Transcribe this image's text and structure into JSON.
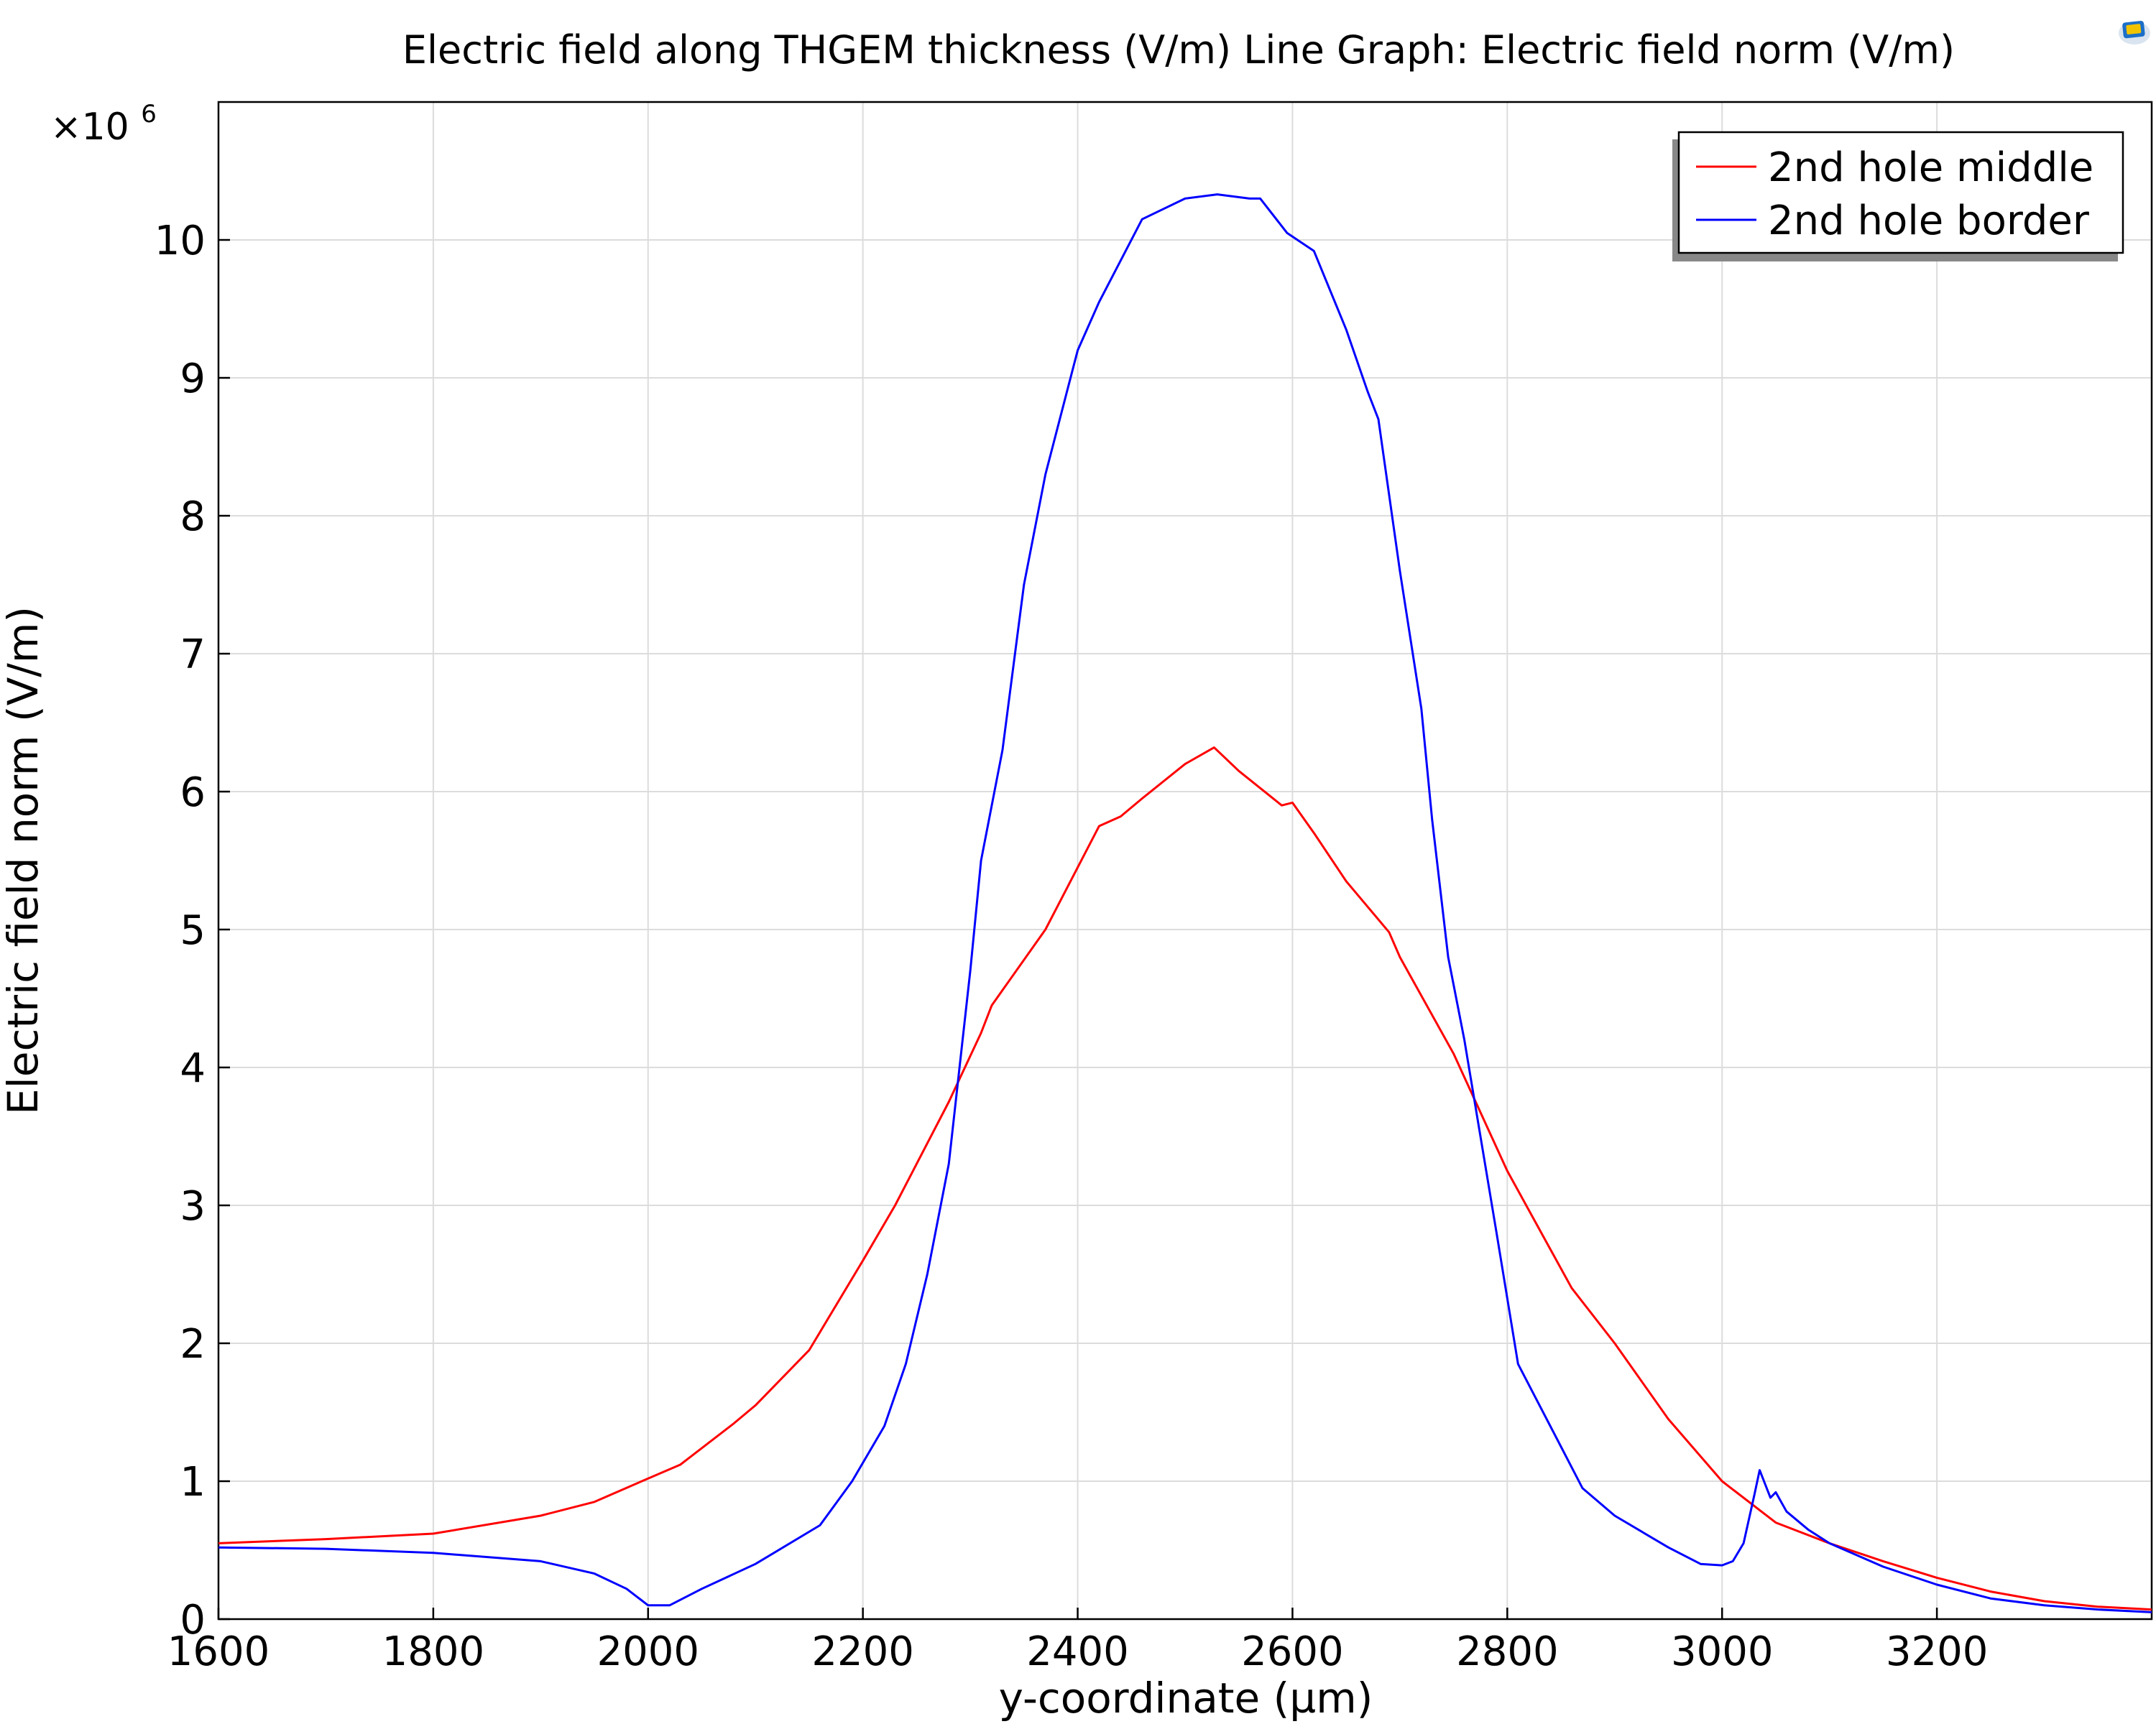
{
  "chart_data": {
    "type": "line",
    "title": "Electric field along THGEM thickness (V/m)  Line Graph: Electric field norm (V/m)",
    "xlabel": "y-coordinate (µm)",
    "ylabel": "Electric field norm (V/m)",
    "y_multiplier_base": "×10",
    "y_multiplier_exp": "6",
    "xlim": [
      1600,
      3400
    ],
    "ylim": [
      0,
      11.0
    ],
    "xticks": [
      "1600",
      "1800",
      "2000",
      "2200",
      "2400",
      "2600",
      "2800",
      "3000",
      "3200"
    ],
    "yticks": [
      "0",
      "1",
      "2",
      "3",
      "4",
      "5",
      "6",
      "7",
      "8",
      "9",
      "10"
    ],
    "grid": true,
    "legend_position": "top-right",
    "series": [
      {
        "name": "2nd hole middle",
        "color": "#ff0000",
        "points": [
          [
            1600,
            0.55
          ],
          [
            1700,
            0.58
          ],
          [
            1800,
            0.62
          ],
          [
            1900,
            0.75
          ],
          [
            1950,
            0.85
          ],
          [
            2000,
            1.02
          ],
          [
            2030,
            1.12
          ],
          [
            2080,
            1.42
          ],
          [
            2100,
            1.55
          ],
          [
            2150,
            1.95
          ],
          [
            2200,
            2.6
          ],
          [
            2230,
            3.0
          ],
          [
            2280,
            3.75
          ],
          [
            2310,
            4.25
          ],
          [
            2320,
            4.45
          ],
          [
            2370,
            5.0
          ],
          [
            2420,
            5.75
          ],
          [
            2440,
            5.82
          ],
          [
            2460,
            5.95
          ],
          [
            2500,
            6.2
          ],
          [
            2527,
            6.32
          ],
          [
            2550,
            6.15
          ],
          [
            2590,
            5.9
          ],
          [
            2600,
            5.92
          ],
          [
            2620,
            5.7
          ],
          [
            2650,
            5.35
          ],
          [
            2690,
            4.98
          ],
          [
            2700,
            4.8
          ],
          [
            2750,
            4.1
          ],
          [
            2800,
            3.25
          ],
          [
            2860,
            2.4
          ],
          [
            2900,
            2.0
          ],
          [
            2950,
            1.45
          ],
          [
            3000,
            1.0
          ],
          [
            3050,
            0.7
          ],
          [
            3100,
            0.55
          ],
          [
            3150,
            0.42
          ],
          [
            3200,
            0.3
          ],
          [
            3250,
            0.2
          ],
          [
            3300,
            0.13
          ],
          [
            3350,
            0.09
          ],
          [
            3400,
            0.07
          ]
        ]
      },
      {
        "name": "2nd hole border",
        "color": "#0000ff",
        "points": [
          [
            1600,
            0.52
          ],
          [
            1700,
            0.51
          ],
          [
            1800,
            0.48
          ],
          [
            1900,
            0.42
          ],
          [
            1950,
            0.33
          ],
          [
            1980,
            0.22
          ],
          [
            2000,
            0.1
          ],
          [
            2020,
            0.1
          ],
          [
            2050,
            0.22
          ],
          [
            2100,
            0.4
          ],
          [
            2160,
            0.68
          ],
          [
            2190,
            1.0
          ],
          [
            2220,
            1.4
          ],
          [
            2240,
            1.85
          ],
          [
            2260,
            2.5
          ],
          [
            2280,
            3.3
          ],
          [
            2300,
            4.7
          ],
          [
            2310,
            5.5
          ],
          [
            2330,
            6.3
          ],
          [
            2350,
            7.5
          ],
          [
            2370,
            8.3
          ],
          [
            2390,
            8.9
          ],
          [
            2400,
            9.2
          ],
          [
            2420,
            9.55
          ],
          [
            2440,
            9.85
          ],
          [
            2460,
            10.15
          ],
          [
            2500,
            10.3
          ],
          [
            2530,
            10.33
          ],
          [
            2560,
            10.3
          ],
          [
            2570,
            10.3
          ],
          [
            2595,
            10.05
          ],
          [
            2620,
            9.92
          ],
          [
            2650,
            9.35
          ],
          [
            2670,
            8.9
          ],
          [
            2680,
            8.7
          ],
          [
            2700,
            7.6
          ],
          [
            2720,
            6.6
          ],
          [
            2730,
            5.8
          ],
          [
            2745,
            4.8
          ],
          [
            2760,
            4.2
          ],
          [
            2775,
            3.5
          ],
          [
            2790,
            2.8
          ],
          [
            2810,
            1.85
          ],
          [
            2830,
            1.55
          ],
          [
            2850,
            1.25
          ],
          [
            2870,
            0.95
          ],
          [
            2900,
            0.75
          ],
          [
            2950,
            0.52
          ],
          [
            2980,
            0.4
          ],
          [
            3000,
            0.39
          ],
          [
            3010,
            0.42
          ],
          [
            3020,
            0.55
          ],
          [
            3030,
            0.9
          ],
          [
            3035,
            1.08
          ],
          [
            3045,
            0.88
          ],
          [
            3050,
            0.92
          ],
          [
            3060,
            0.78
          ],
          [
            3080,
            0.65
          ],
          [
            3100,
            0.55
          ],
          [
            3150,
            0.38
          ],
          [
            3200,
            0.25
          ],
          [
            3250,
            0.15
          ],
          [
            3300,
            0.1
          ],
          [
            3350,
            0.07
          ],
          [
            3400,
            0.05
          ]
        ]
      }
    ]
  }
}
